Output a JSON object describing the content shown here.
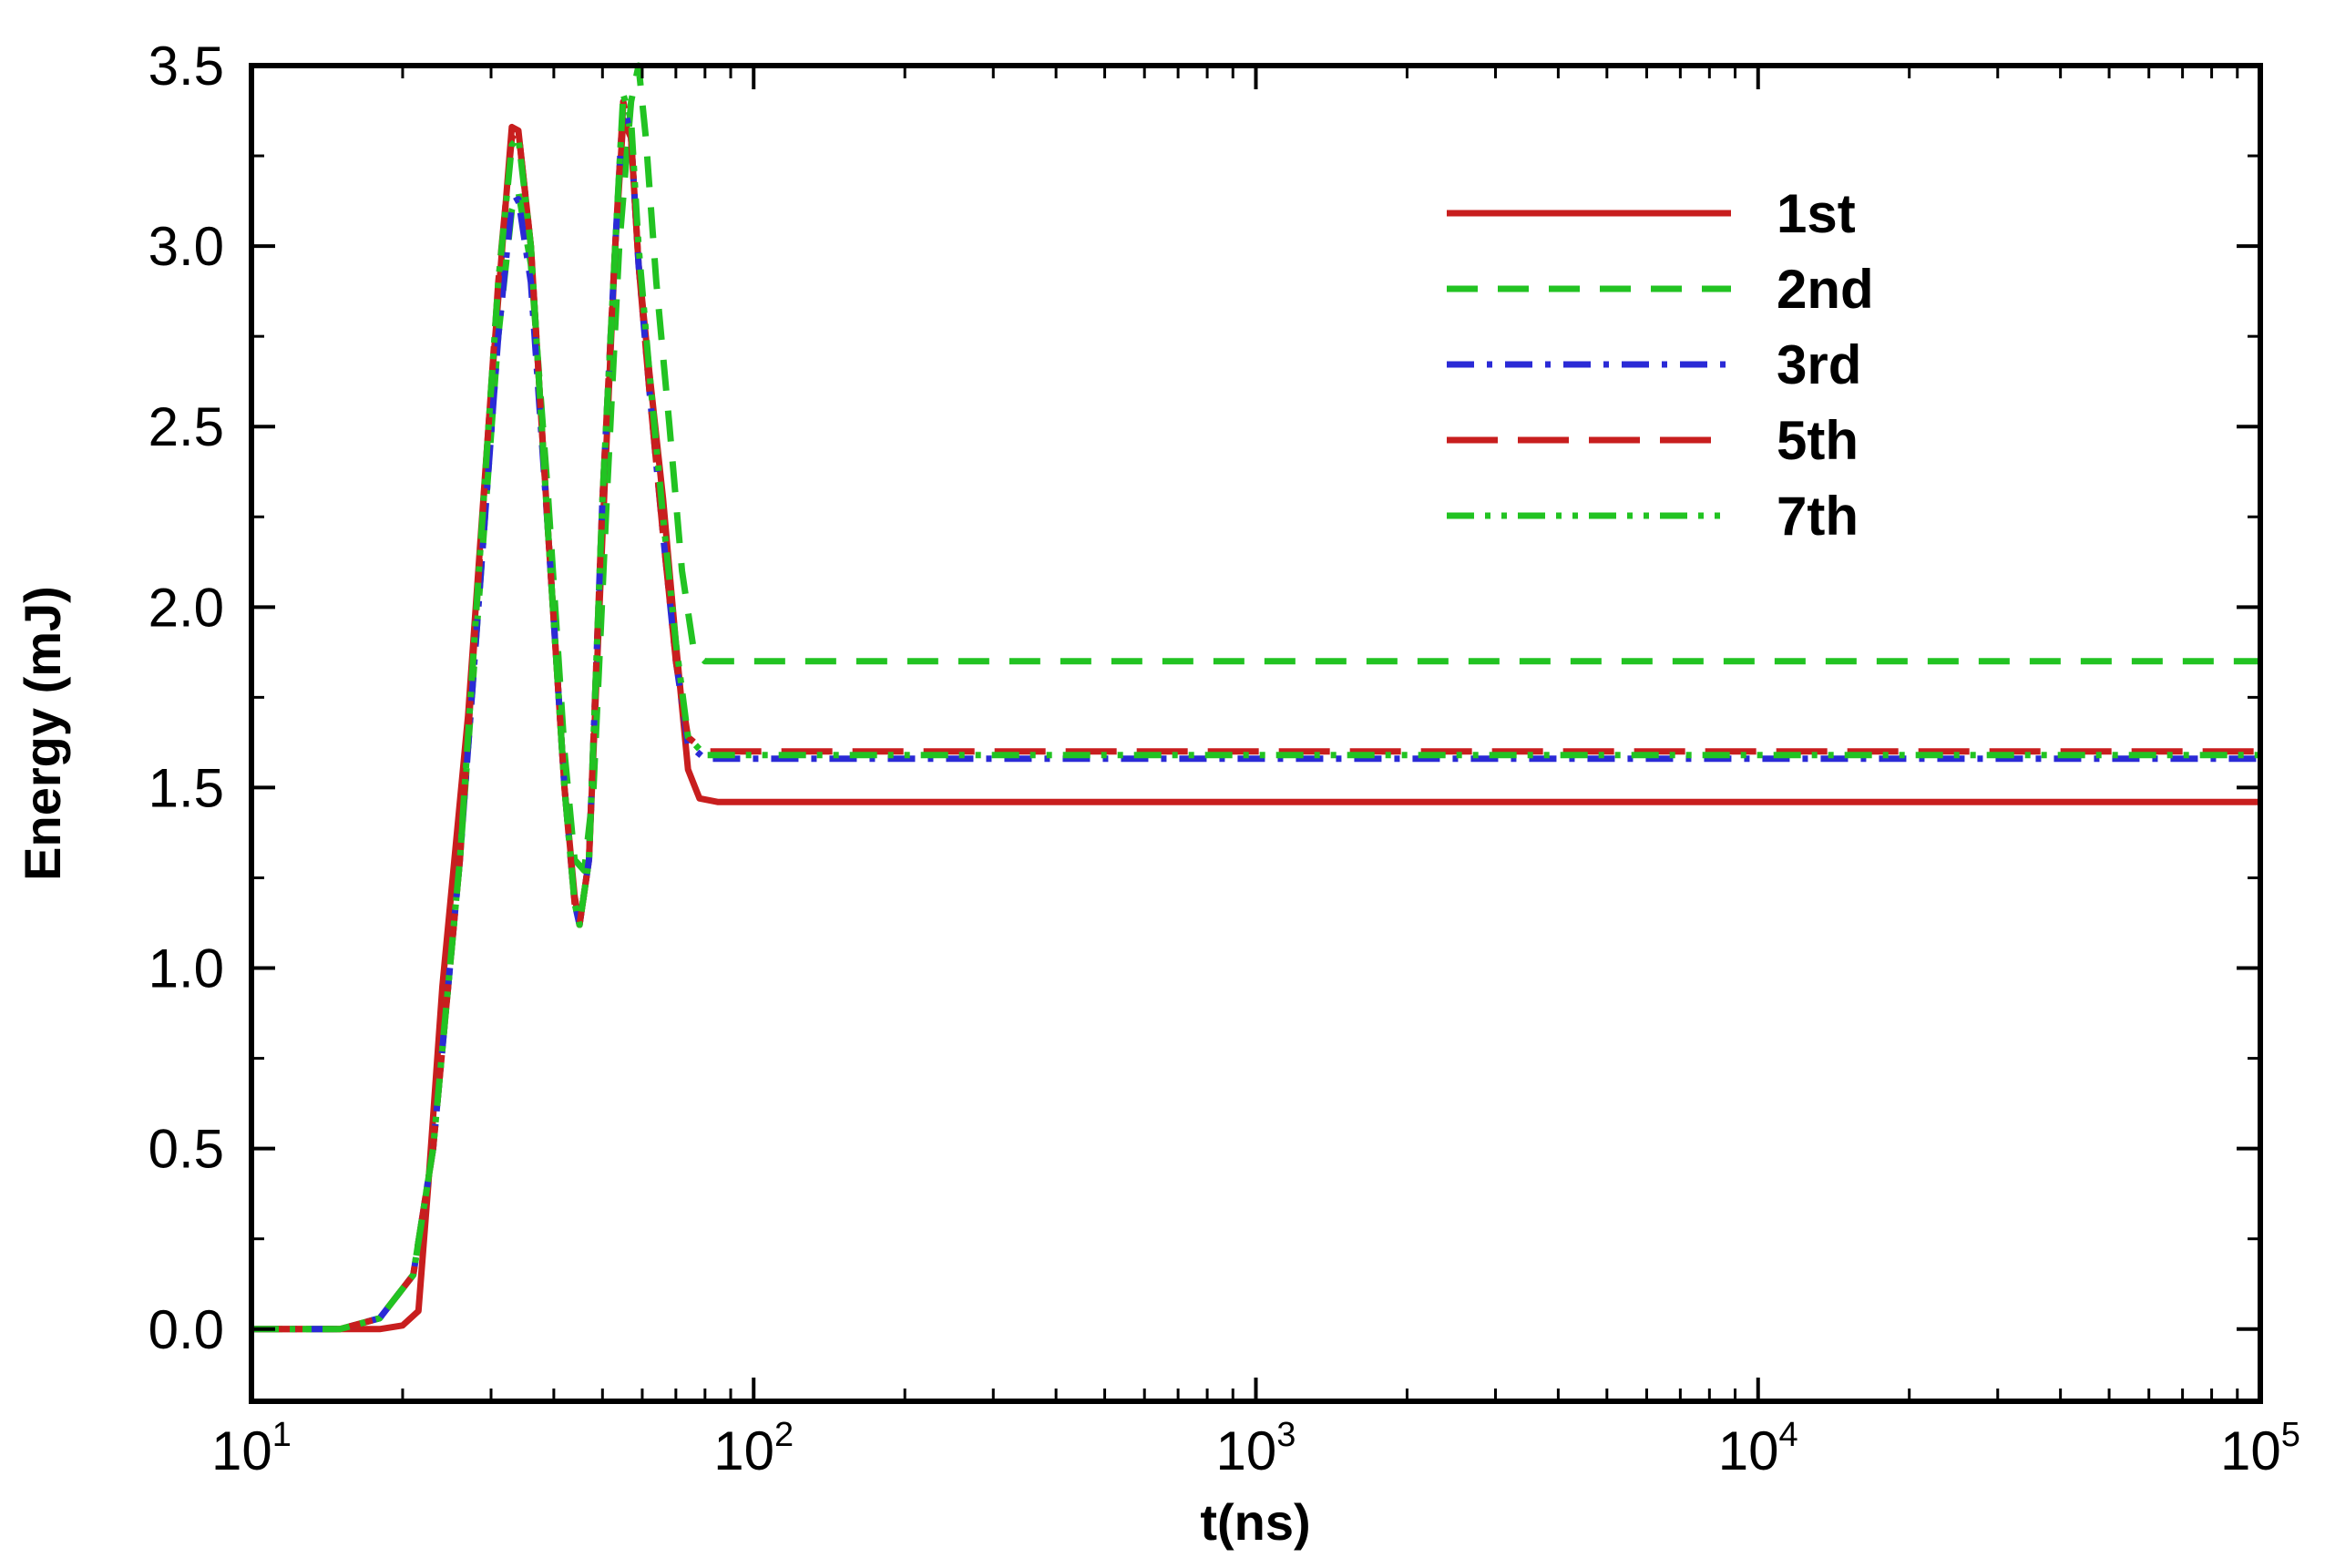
{
  "chart_data": {
    "type": "line",
    "title": "",
    "xlabel": "t(ns)",
    "ylabel": "Energy (mJ)",
    "x_scale": "log",
    "xlim": [
      10,
      100000
    ],
    "ylim": [
      -0.2,
      3.5
    ],
    "grid": false,
    "legend_position": "top-right",
    "x_ticks": [
      {
        "value": 10,
        "base": "10",
        "exp": "1"
      },
      {
        "value": 100,
        "base": "10",
        "exp": "2"
      },
      {
        "value": 1000,
        "base": "10",
        "exp": "3"
      },
      {
        "value": 10000,
        "base": "10",
        "exp": "4"
      },
      {
        "value": 100000,
        "base": "10",
        "exp": "5"
      }
    ],
    "y_ticks": [
      {
        "value": 0.0,
        "label": "0.0"
      },
      {
        "value": 0.5,
        "label": "0.5"
      },
      {
        "value": 1.0,
        "label": "1.0"
      },
      {
        "value": 1.5,
        "label": "1.5"
      },
      {
        "value": 2.0,
        "label": "2.0"
      },
      {
        "value": 2.5,
        "label": "2.5"
      },
      {
        "value": 3.0,
        "label": "3.0"
      },
      {
        "value": 3.5,
        "label": "3.5"
      }
    ],
    "series": [
      {
        "name": "1st",
        "color": "#c81e1e",
        "dash": "solid",
        "points": [
          [
            10,
            0
          ],
          [
            18,
            0
          ],
          [
            20,
            0.01
          ],
          [
            21.5,
            0.05
          ],
          [
            22.5,
            0.4
          ],
          [
            24,
            0.95
          ],
          [
            27,
            1.7
          ],
          [
            30,
            2.6
          ],
          [
            32,
            3.1
          ],
          [
            33,
            3.33
          ],
          [
            34,
            3.32
          ],
          [
            36,
            3.0
          ],
          [
            39,
            2.2
          ],
          [
            42,
            1.5
          ],
          [
            44,
            1.2
          ],
          [
            45,
            1.12
          ],
          [
            47,
            1.3
          ],
          [
            50,
            2.2
          ],
          [
            53,
            3.0
          ],
          [
            55,
            3.35
          ],
          [
            57,
            3.3
          ],
          [
            59,
            2.95
          ],
          [
            62,
            2.65
          ],
          [
            66,
            2.3
          ],
          [
            70,
            1.9
          ],
          [
            74,
            1.55
          ],
          [
            78,
            1.47
          ],
          [
            85,
            1.46
          ],
          [
            100000,
            1.46
          ]
        ]
      },
      {
        "name": "2nd",
        "color": "#22c322",
        "dash": "dashed",
        "points": [
          [
            10,
            0
          ],
          [
            15,
            0
          ],
          [
            18,
            0.03
          ],
          [
            21,
            0.15
          ],
          [
            23,
            0.5
          ],
          [
            26,
            1.3
          ],
          [
            29,
            2.2
          ],
          [
            31,
            2.75
          ],
          [
            33,
            3.1
          ],
          [
            34,
            3.15
          ],
          [
            36,
            2.95
          ],
          [
            39,
            2.3
          ],
          [
            42,
            1.6
          ],
          [
            44,
            1.3
          ],
          [
            46,
            1.27
          ],
          [
            48,
            1.5
          ],
          [
            51,
            2.3
          ],
          [
            54,
            3.0
          ],
          [
            57,
            3.4
          ],
          [
            59,
            3.5
          ],
          [
            61,
            3.3
          ],
          [
            64,
            2.9
          ],
          [
            68,
            2.5
          ],
          [
            72,
            2.1
          ],
          [
            76,
            1.88
          ],
          [
            80,
            1.85
          ],
          [
            100000,
            1.85
          ]
        ]
      },
      {
        "name": "3rd",
        "color": "#2a2ad6",
        "dash": "dashdot",
        "points": [
          [
            10,
            0
          ],
          [
            15,
            0
          ],
          [
            18,
            0.03
          ],
          [
            21,
            0.15
          ],
          [
            23,
            0.5
          ],
          [
            26,
            1.3
          ],
          [
            29,
            2.2
          ],
          [
            31,
            2.75
          ],
          [
            33,
            3.12
          ],
          [
            34,
            3.13
          ],
          [
            36,
            2.9
          ],
          [
            39,
            2.2
          ],
          [
            42,
            1.5
          ],
          [
            44,
            1.18
          ],
          [
            45,
            1.12
          ],
          [
            47,
            1.3
          ],
          [
            50,
            2.3
          ],
          [
            53,
            3.0
          ],
          [
            55,
            3.4
          ],
          [
            57,
            3.3
          ],
          [
            59,
            2.95
          ],
          [
            62,
            2.6
          ],
          [
            66,
            2.2
          ],
          [
            70,
            1.85
          ],
          [
            74,
            1.62
          ],
          [
            80,
            1.58
          ],
          [
            100000,
            1.58
          ]
        ]
      },
      {
        "name": "5th",
        "color": "#c81e1e",
        "dash": "longdash",
        "points": [
          [
            10,
            0
          ],
          [
            15,
            0
          ],
          [
            18,
            0.03
          ],
          [
            21,
            0.15
          ],
          [
            23,
            0.5
          ],
          [
            26,
            1.3
          ],
          [
            29,
            2.3
          ],
          [
            31,
            2.9
          ],
          [
            33,
            3.3
          ],
          [
            34,
            3.32
          ],
          [
            36,
            3.0
          ],
          [
            39,
            2.2
          ],
          [
            42,
            1.5
          ],
          [
            44,
            1.18
          ],
          [
            45,
            1.12
          ],
          [
            47,
            1.3
          ],
          [
            50,
            2.3
          ],
          [
            53,
            3.0
          ],
          [
            55,
            3.4
          ],
          [
            57,
            3.3
          ],
          [
            59,
            2.95
          ],
          [
            62,
            2.6
          ],
          [
            66,
            2.2
          ],
          [
            70,
            1.85
          ],
          [
            74,
            1.64
          ],
          [
            80,
            1.6
          ],
          [
            100000,
            1.6
          ]
        ]
      },
      {
        "name": "7th",
        "color": "#22c322",
        "dash": "dashdotdot",
        "points": [
          [
            10,
            0
          ],
          [
            15,
            0
          ],
          [
            18,
            0.03
          ],
          [
            21,
            0.15
          ],
          [
            23,
            0.5
          ],
          [
            26,
            1.3
          ],
          [
            29,
            2.3
          ],
          [
            31,
            2.9
          ],
          [
            33,
            3.28
          ],
          [
            34,
            3.3
          ],
          [
            36,
            3.0
          ],
          [
            39,
            2.2
          ],
          [
            42,
            1.5
          ],
          [
            44,
            1.18
          ],
          [
            45,
            1.12
          ],
          [
            47,
            1.3
          ],
          [
            50,
            2.3
          ],
          [
            53,
            3.0
          ],
          [
            55,
            3.42
          ],
          [
            57,
            3.35
          ],
          [
            59,
            3.0
          ],
          [
            62,
            2.65
          ],
          [
            66,
            2.25
          ],
          [
            70,
            1.9
          ],
          [
            74,
            1.64
          ],
          [
            80,
            1.59
          ],
          [
            100000,
            1.59
          ]
        ]
      }
    ]
  }
}
